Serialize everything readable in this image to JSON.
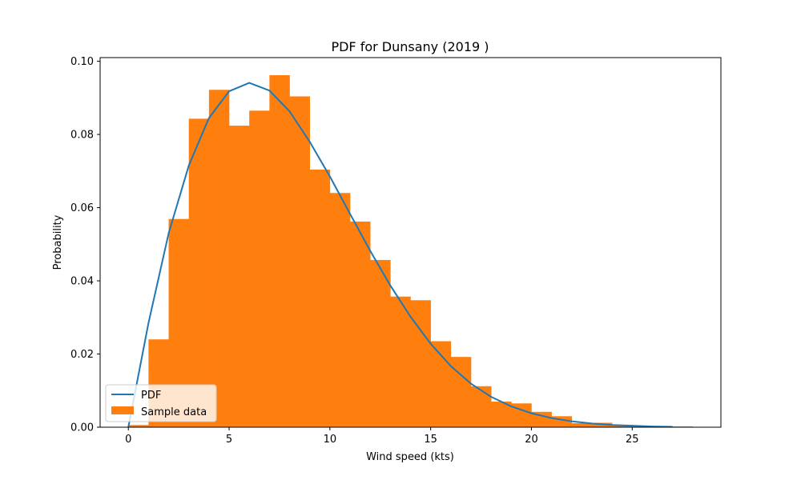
{
  "chart_data": {
    "type": "bar",
    "title": "PDF for Dunsany (2019 )",
    "xlabel": "Wind speed (kts)",
    "ylabel": "Probability",
    "xlim": [
      -1.4,
      29.4
    ],
    "ylim": [
      0,
      0.101
    ],
    "xticks": [
      0,
      5,
      10,
      15,
      20,
      25
    ],
    "xtick_labels": [
      "0",
      "5",
      "10",
      "15",
      "20",
      "25"
    ],
    "yticks": [
      0.0,
      0.02,
      0.04,
      0.06,
      0.08,
      0.1
    ],
    "ytick_labels": [
      "0.00",
      "0.02",
      "0.04",
      "0.06",
      "0.08",
      "0.10"
    ],
    "grid": false,
    "legend_placement": "lower-left",
    "colors": {
      "pdf": "#1f77b4",
      "sample": "#ff7f0e"
    },
    "series": [
      {
        "name": "PDF",
        "kind": "line",
        "x": [
          0,
          1,
          2,
          3,
          4,
          5,
          6,
          7,
          8,
          9,
          10,
          11,
          12,
          13,
          14,
          15,
          16,
          17,
          18,
          19,
          20,
          21,
          22,
          23,
          24,
          25,
          26,
          27
        ],
        "y": [
          0.0,
          0.0285,
          0.053,
          0.0715,
          0.0845,
          0.0918,
          0.0941,
          0.092,
          0.0863,
          0.078,
          0.0685,
          0.0583,
          0.0482,
          0.0387,
          0.0302,
          0.0228,
          0.0167,
          0.0119,
          0.0083,
          0.0057,
          0.0038,
          0.0025,
          0.0016,
          0.001,
          0.0006,
          0.0004,
          0.0002,
          0.0001
        ]
      },
      {
        "name": "Sample data",
        "kind": "histogram",
        "bin_edges": [
          0,
          1,
          2,
          3,
          4,
          5,
          6,
          7,
          8,
          9,
          10,
          11,
          12,
          13,
          14,
          15,
          16,
          17,
          18,
          19,
          20,
          21,
          22,
          23,
          24,
          25,
          26,
          27,
          28
        ],
        "values": [
          0.0006,
          0.024,
          0.0569,
          0.0843,
          0.0922,
          0.0824,
          0.0865,
          0.0962,
          0.0904,
          0.0704,
          0.064,
          0.0562,
          0.0457,
          0.0357,
          0.0347,
          0.0235,
          0.0192,
          0.0112,
          0.007,
          0.0065,
          0.0042,
          0.003,
          0.0011,
          0.0012,
          0.0004,
          0.0003,
          0.0002,
          0.0002
        ]
      }
    ]
  }
}
